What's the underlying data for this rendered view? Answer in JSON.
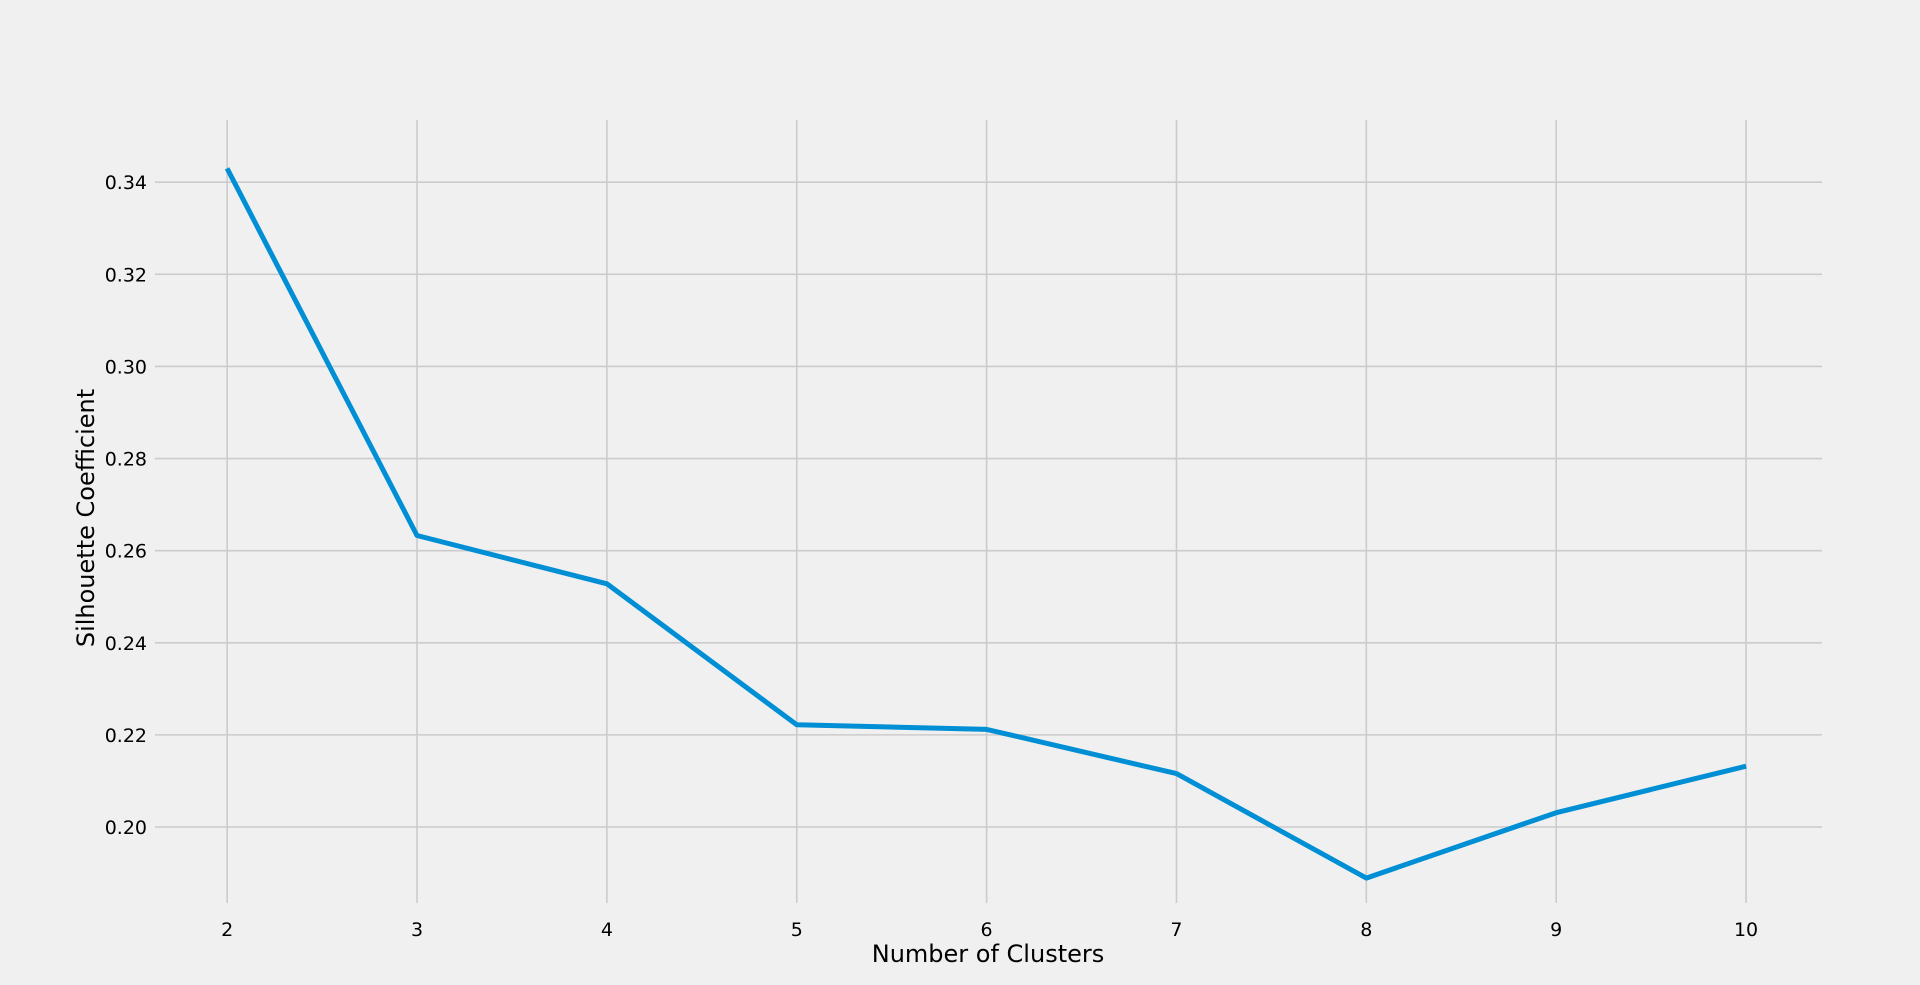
{
  "chart_data": {
    "type": "line",
    "title": "",
    "xlabel": "Number of Clusters",
    "ylabel": "Silhouette Coefficient",
    "x": [
      2,
      3,
      4,
      5,
      6,
      7,
      8,
      9,
      10
    ],
    "series": [
      {
        "values": [
          0.343,
          0.2633,
          0.2528,
          0.2222,
          0.2212,
          0.2116,
          0.1889,
          0.2031,
          0.2132
        ],
        "color": "#008fd5"
      }
    ],
    "xticks": [
      "2",
      "3",
      "4",
      "5",
      "6",
      "7",
      "8",
      "9",
      "10"
    ],
    "yticks": [
      "0.20",
      "0.22",
      "0.24",
      "0.26",
      "0.28",
      "0.30",
      "0.32",
      "0.34"
    ],
    "xlim": [
      1.62,
      10.4
    ],
    "ylim": [
      0.1835,
      0.3535
    ],
    "grid": true,
    "legend": "none"
  }
}
